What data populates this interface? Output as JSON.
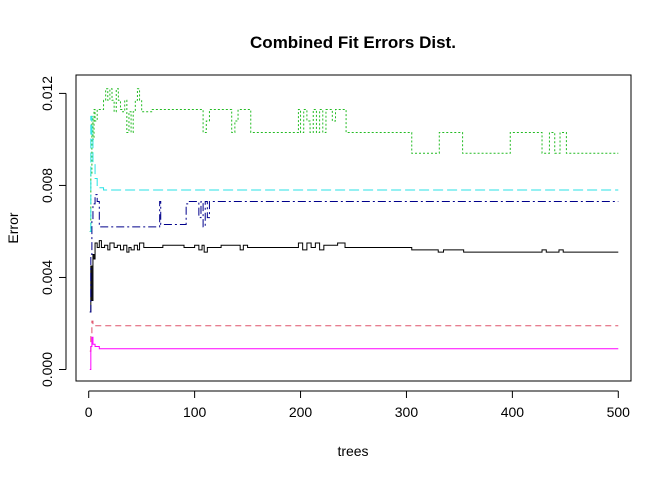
{
  "chart_data": {
    "type": "line",
    "title": "Combined Fit Errors Dist.",
    "xlabel": "trees",
    "ylabel": "Error",
    "xlim": [
      -12,
      512
    ],
    "ylim": [
      -0.0005,
      0.0128
    ],
    "x_ticks": [
      0,
      100,
      200,
      300,
      400,
      500
    ],
    "x_tick_labels": [
      "0",
      "100",
      "200",
      "300",
      "400",
      "500"
    ],
    "y_ticks": [
      0.0,
      0.004,
      0.008,
      0.012
    ],
    "y_tick_labels": [
      "0.000",
      "0.004",
      "0.008",
      "0.012"
    ],
    "grid": false,
    "legend": "none",
    "series": [
      {
        "color": "#000000",
        "dash": "solid",
        "points": [
          [
            1,
            0.0025
          ],
          [
            2,
            0.0045
          ],
          [
            3,
            0.003
          ],
          [
            4,
            0.005
          ],
          [
            5,
            0.0048
          ],
          [
            6,
            0.0055
          ],
          [
            8,
            0.0053
          ],
          [
            10,
            0.0056
          ],
          [
            12,
            0.0053
          ],
          [
            15,
            0.0054
          ],
          [
            18,
            0.0052
          ],
          [
            20,
            0.0055
          ],
          [
            24,
            0.0053
          ],
          [
            27,
            0.0054
          ],
          [
            30,
            0.0052
          ],
          [
            33,
            0.0054
          ],
          [
            36,
            0.0051
          ],
          [
            38,
            0.0053
          ],
          [
            40,
            0.0052
          ],
          [
            43,
            0.0054
          ],
          [
            46,
            0.0052
          ],
          [
            48,
            0.0055
          ],
          [
            52,
            0.0053
          ],
          [
            60,
            0.0053
          ],
          [
            70,
            0.0054
          ],
          [
            90,
            0.0053
          ],
          [
            100,
            0.0054
          ],
          [
            104,
            0.0052
          ],
          [
            107,
            0.0054
          ],
          [
            109,
            0.0051
          ],
          [
            112,
            0.0053
          ],
          [
            115,
            0.0053
          ],
          [
            125,
            0.0054
          ],
          [
            140,
            0.0054
          ],
          [
            143,
            0.0052
          ],
          [
            146,
            0.0054
          ],
          [
            150,
            0.0053
          ],
          [
            180,
            0.0053
          ],
          [
            195,
            0.0053
          ],
          [
            198,
            0.0055
          ],
          [
            202,
            0.0052
          ],
          [
            206,
            0.0055
          ],
          [
            210,
            0.0053
          ],
          [
            214,
            0.0055
          ],
          [
            218,
            0.0052
          ],
          [
            222,
            0.0054
          ],
          [
            228,
            0.0054
          ],
          [
            235,
            0.0055
          ],
          [
            242,
            0.0053
          ],
          [
            280,
            0.0053
          ],
          [
            305,
            0.0052
          ],
          [
            330,
            0.0051
          ],
          [
            335,
            0.0052
          ],
          [
            350,
            0.0052
          ],
          [
            354,
            0.0051
          ],
          [
            360,
            0.0051
          ],
          [
            400,
            0.0051
          ],
          [
            425,
            0.0051
          ],
          [
            428,
            0.0052
          ],
          [
            432,
            0.0051
          ],
          [
            440,
            0.0051
          ],
          [
            444,
            0.0052
          ],
          [
            448,
            0.0051
          ],
          [
            500,
            0.0051
          ]
        ]
      },
      {
        "color": "#DF536B",
        "dash": "6,4",
        "points": [
          [
            1,
            0.0008
          ],
          [
            2,
            0.0015
          ],
          [
            3,
            0.0021
          ],
          [
            4,
            0.0019
          ],
          [
            6,
            0.0019
          ],
          [
            500,
            0.0019
          ]
        ]
      },
      {
        "color": "#22BB22",
        "dash": "2,2",
        "points": [
          [
            1,
            0.006
          ],
          [
            2,
            0.0085
          ],
          [
            3,
            0.011
          ],
          [
            4,
            0.01
          ],
          [
            5,
            0.0113
          ],
          [
            6,
            0.0108
          ],
          [
            8,
            0.0113
          ],
          [
            12,
            0.0113
          ],
          [
            14,
            0.0117
          ],
          [
            16,
            0.0122
          ],
          [
            18,
            0.0117
          ],
          [
            20,
            0.0122
          ],
          [
            22,
            0.0117
          ],
          [
            24,
            0.0112
          ],
          [
            26,
            0.0122
          ],
          [
            28,
            0.0117
          ],
          [
            30,
            0.0113
          ],
          [
            32,
            0.0112
          ],
          [
            34,
            0.0117
          ],
          [
            36,
            0.0103
          ],
          [
            38,
            0.0112
          ],
          [
            40,
            0.0103
          ],
          [
            42,
            0.0112
          ],
          [
            44,
            0.0117
          ],
          [
            46,
            0.0122
          ],
          [
            48,
            0.0117
          ],
          [
            50,
            0.0112
          ],
          [
            60,
            0.0113
          ],
          [
            105,
            0.0113
          ],
          [
            108,
            0.0103
          ],
          [
            111,
            0.0108
          ],
          [
            114,
            0.0113
          ],
          [
            132,
            0.0113
          ],
          [
            135,
            0.0103
          ],
          [
            138,
            0.0108
          ],
          [
            141,
            0.0113
          ],
          [
            150,
            0.0113
          ],
          [
            153,
            0.0103
          ],
          [
            195,
            0.0103
          ],
          [
            198,
            0.0113
          ],
          [
            200,
            0.0103
          ],
          [
            203,
            0.0113
          ],
          [
            206,
            0.0108
          ],
          [
            209,
            0.0103
          ],
          [
            212,
            0.0113
          ],
          [
            215,
            0.0103
          ],
          [
            218,
            0.0113
          ],
          [
            221,
            0.0103
          ],
          [
            224,
            0.0113
          ],
          [
            230,
            0.0108
          ],
          [
            233,
            0.0113
          ],
          [
            240,
            0.0113
          ],
          [
            243,
            0.0103
          ],
          [
            300,
            0.0103
          ],
          [
            305,
            0.0094
          ],
          [
            328,
            0.0094
          ],
          [
            331,
            0.0103
          ],
          [
            350,
            0.0103
          ],
          [
            353,
            0.0094
          ],
          [
            395,
            0.0094
          ],
          [
            398,
            0.0103
          ],
          [
            425,
            0.0103
          ],
          [
            428,
            0.0094
          ],
          [
            432,
            0.0094
          ],
          [
            435,
            0.0103
          ],
          [
            440,
            0.0094
          ],
          [
            445,
            0.0103
          ],
          [
            448,
            0.0103
          ],
          [
            451,
            0.0094
          ],
          [
            500,
            0.0094
          ]
        ]
      },
      {
        "color": "#00008B",
        "dash": "8,3,2,3",
        "points": [
          [
            1,
            0.0025
          ],
          [
            2,
            0.005
          ],
          [
            3,
            0.0065
          ],
          [
            4,
            0.0072
          ],
          [
            6,
            0.0076
          ],
          [
            8,
            0.0073
          ],
          [
            10,
            0.0062
          ],
          [
            12,
            0.0062
          ],
          [
            65,
            0.0062
          ],
          [
            67,
            0.0073
          ],
          [
            68,
            0.0063
          ],
          [
            90,
            0.0063
          ],
          [
            92,
            0.0072
          ],
          [
            95,
            0.0073
          ],
          [
            100,
            0.0073
          ],
          [
            104,
            0.0066
          ],
          [
            106,
            0.0073
          ],
          [
            108,
            0.0062
          ],
          [
            110,
            0.0073
          ],
          [
            112,
            0.0066
          ],
          [
            114,
            0.0073
          ],
          [
            118,
            0.0073
          ],
          [
            500,
            0.0073
          ]
        ]
      },
      {
        "color": "#28E2E5",
        "dash": "10,4",
        "points": [
          [
            1,
            0.006
          ],
          [
            2,
            0.011
          ],
          [
            3,
            0.01
          ],
          [
            4,
            0.009
          ],
          [
            6,
            0.0083
          ],
          [
            8,
            0.008
          ],
          [
            10,
            0.0079
          ],
          [
            14,
            0.0078
          ],
          [
            20,
            0.0078
          ],
          [
            500,
            0.0078
          ]
        ]
      },
      {
        "color": "#FF00FF",
        "dash": "solid",
        "points": [
          [
            1,
            0.0
          ],
          [
            2,
            0.001
          ],
          [
            3,
            0.0014
          ],
          [
            4,
            0.0011
          ],
          [
            6,
            0.001
          ],
          [
            10,
            0.0009
          ],
          [
            500,
            0.0009
          ]
        ]
      }
    ]
  }
}
